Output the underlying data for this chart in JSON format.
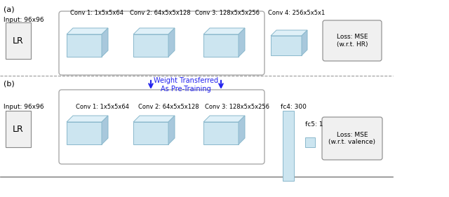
{
  "bg_color": "#ffffff",
  "fig_width": 6.4,
  "fig_height": 2.81,
  "label_a": "(a)",
  "label_b": "(b)",
  "input_label": "Input: 96x96",
  "lr_label": "LR",
  "conv_labels_a": [
    "Conv 1: 1x5x5x64",
    "Conv 2: 64x5x5x128",
    "Conv 3: 128x5x5x256",
    "Conv 4: 256x5x5x1"
  ],
  "conv_labels_b": [
    "Conv 1: 1x5x5x64",
    "Conv 2: 64x5x5x128",
    "Conv 3: 128x5x5x256"
  ],
  "fc4_label": "fc4: 300",
  "fc5_label": "fc5: 1",
  "loss_a_label": "Loss: MSE\n(w.r.t. HR)",
  "loss_b_label": "Loss: MSE\n(w.r.t. valence)",
  "weight_label": "Weight Transferred\nAs Pre-Training",
  "cube_face_color": "#cce5f0",
  "cube_edge_color": "#8ab8cc",
  "cube_top_color": "#dff0f8",
  "cube_side_color": "#a8c8dc",
  "lr_box_color": "#f0f0f0",
  "loss_box_color": "#f0f0f0",
  "fc_color": "#cce5f0",
  "rounded_rect_color": "#e8e8e8",
  "arrow_color": "#2222ee",
  "dashed_line_color": "#999999",
  "rounded_rect_edge": "#aaaaaa"
}
